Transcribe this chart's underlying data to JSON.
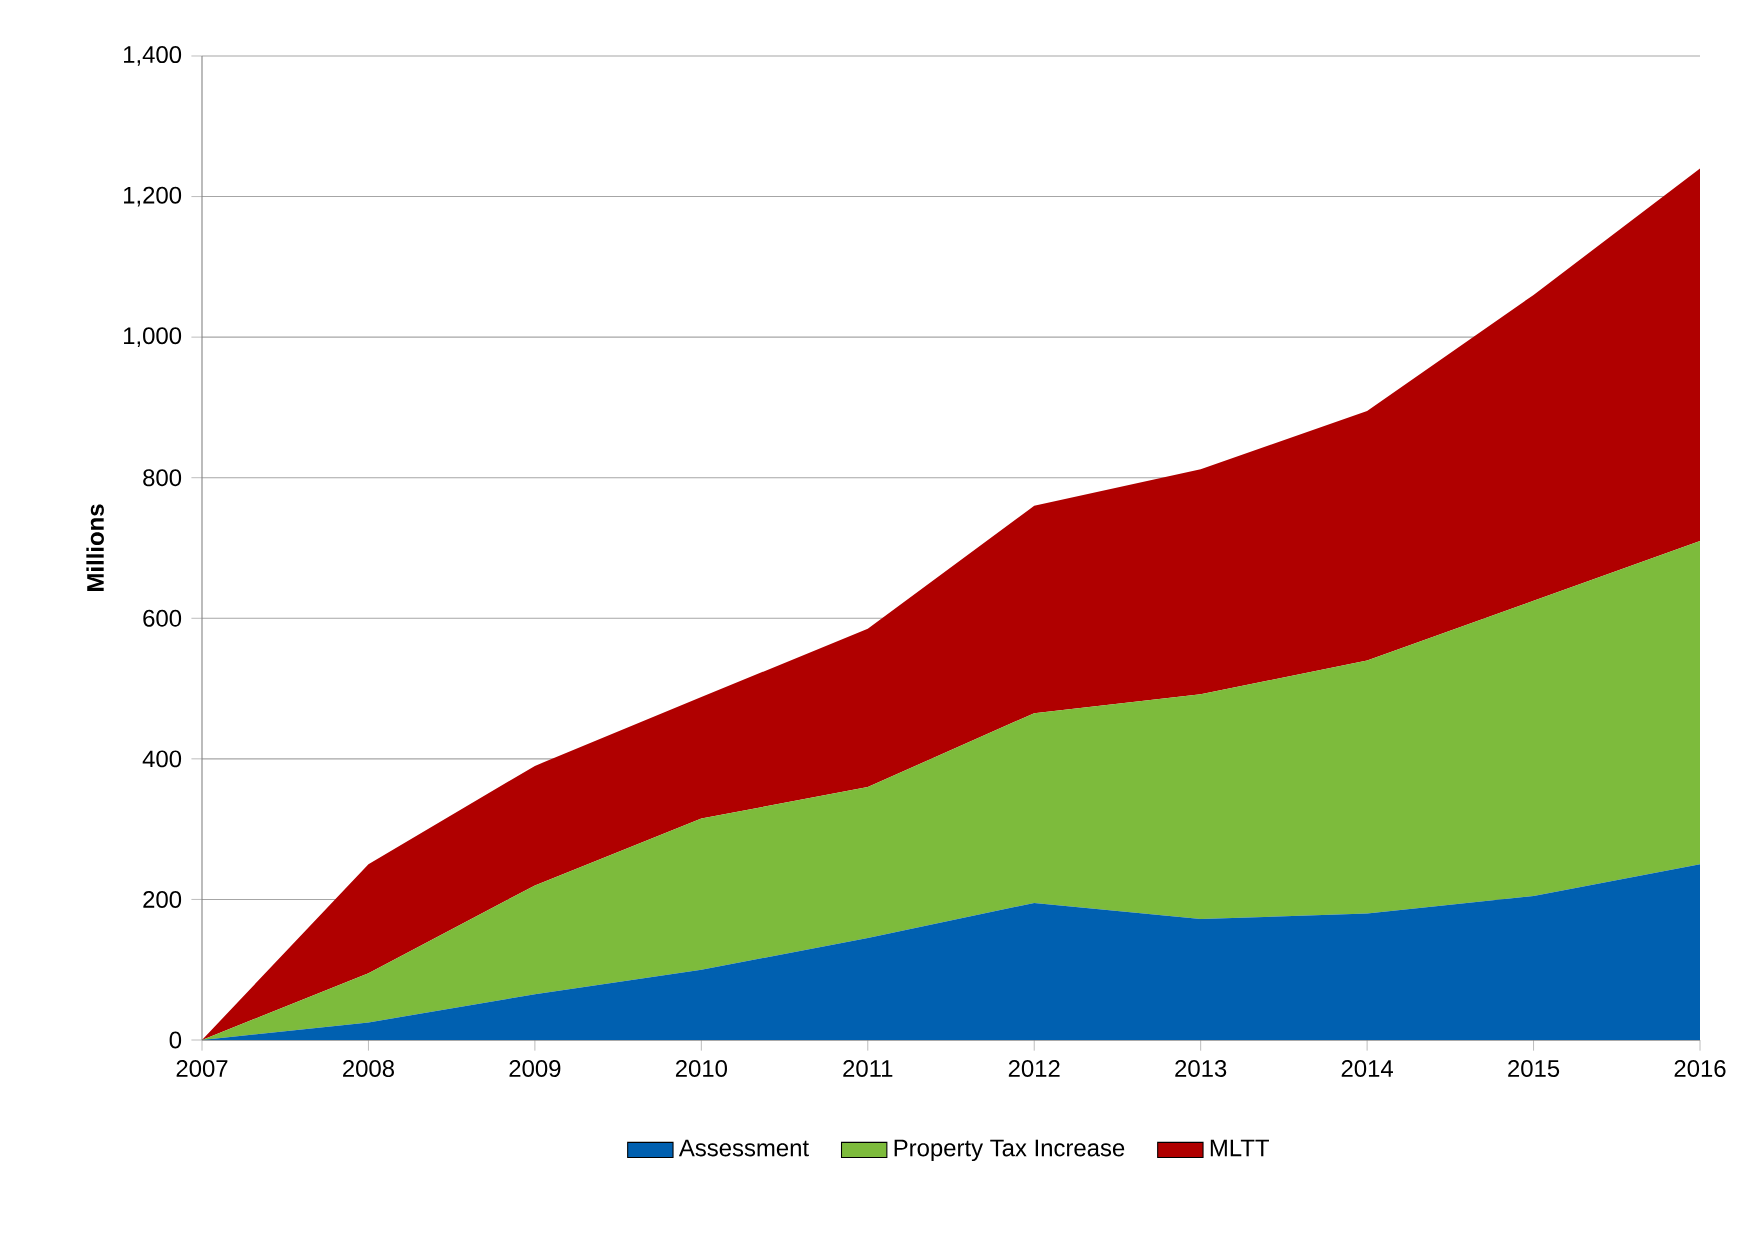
{
  "chart_data": {
    "type": "area",
    "stacked": true,
    "ylabel": "Millions",
    "x": [
      2007,
      2008,
      2009,
      2010,
      2011,
      2012,
      2013,
      2014,
      2015,
      2016
    ],
    "series": [
      {
        "name": "Assessment",
        "color": "#0060b0",
        "values": [
          0,
          25,
          65,
          100,
          145,
          195,
          172,
          180,
          205,
          250
        ]
      },
      {
        "name": "Property Tax Increase",
        "color": "#7dbb3c",
        "values": [
          0,
          70,
          155,
          215,
          215,
          270,
          320,
          360,
          420,
          460
        ]
      },
      {
        "name": "MLTT",
        "color": "#b00000",
        "values": [
          0,
          155,
          170,
          173,
          225,
          295,
          320,
          355,
          435,
          530
        ]
      }
    ],
    "xlim": [
      2007,
      2016
    ],
    "xticks": [
      2007,
      2008,
      2009,
      2010,
      2011,
      2012,
      2013,
      2014,
      2015,
      2016
    ],
    "ylim": [
      0,
      1400
    ],
    "yticks": [
      {
        "value": 0,
        "label": "0"
      },
      {
        "value": 200,
        "label": "200"
      },
      {
        "value": 400,
        "label": "400"
      },
      {
        "value": 600,
        "label": "600"
      },
      {
        "value": 800,
        "label": "800"
      },
      {
        "value": 1000,
        "label": "1,000"
      },
      {
        "value": 1200,
        "label": "1,200"
      },
      {
        "value": 1400,
        "label": "1,400"
      }
    ],
    "grid": "y",
    "legend": "bottom"
  }
}
